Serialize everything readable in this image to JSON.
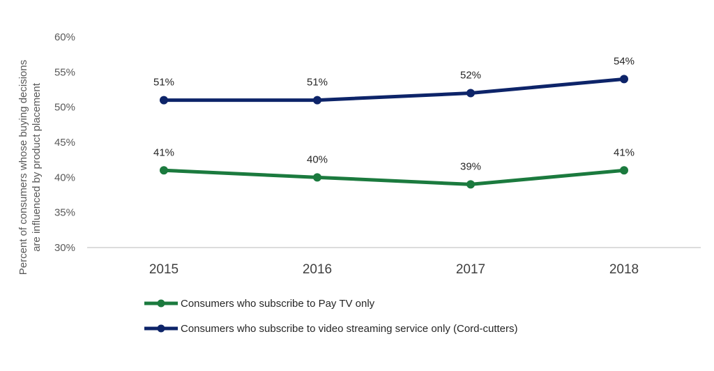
{
  "chart_data": {
    "type": "line",
    "title": "",
    "ylabel_lines": [
      "Percent of consumers whose buying decisions",
      "are influenced by product placement"
    ],
    "xlabel": "",
    "categories": [
      "2015",
      "2016",
      "2017",
      "2018"
    ],
    "ylim": [
      30,
      60
    ],
    "yticks": [
      30,
      35,
      40,
      45,
      50,
      55,
      60
    ],
    "ytick_labels": [
      "30%",
      "35%",
      "40%",
      "45%",
      "50%",
      "55%",
      "60%"
    ],
    "grid": false,
    "legend_position": "bottom-left",
    "series": [
      {
        "name": "Consumers who subscribe to Pay TV only",
        "values": [
          41,
          40,
          39,
          41
        ],
        "labels": [
          "41%",
          "40%",
          "39%",
          "41%"
        ],
        "color": "#1b7a3e"
      },
      {
        "name": "Consumers who subscribe to video streaming service only (Cord-cutters)",
        "values": [
          51,
          51,
          52,
          54
        ],
        "labels": [
          "51%",
          "51%",
          "52%",
          "54%"
        ],
        "color": "#0d2469"
      }
    ]
  }
}
